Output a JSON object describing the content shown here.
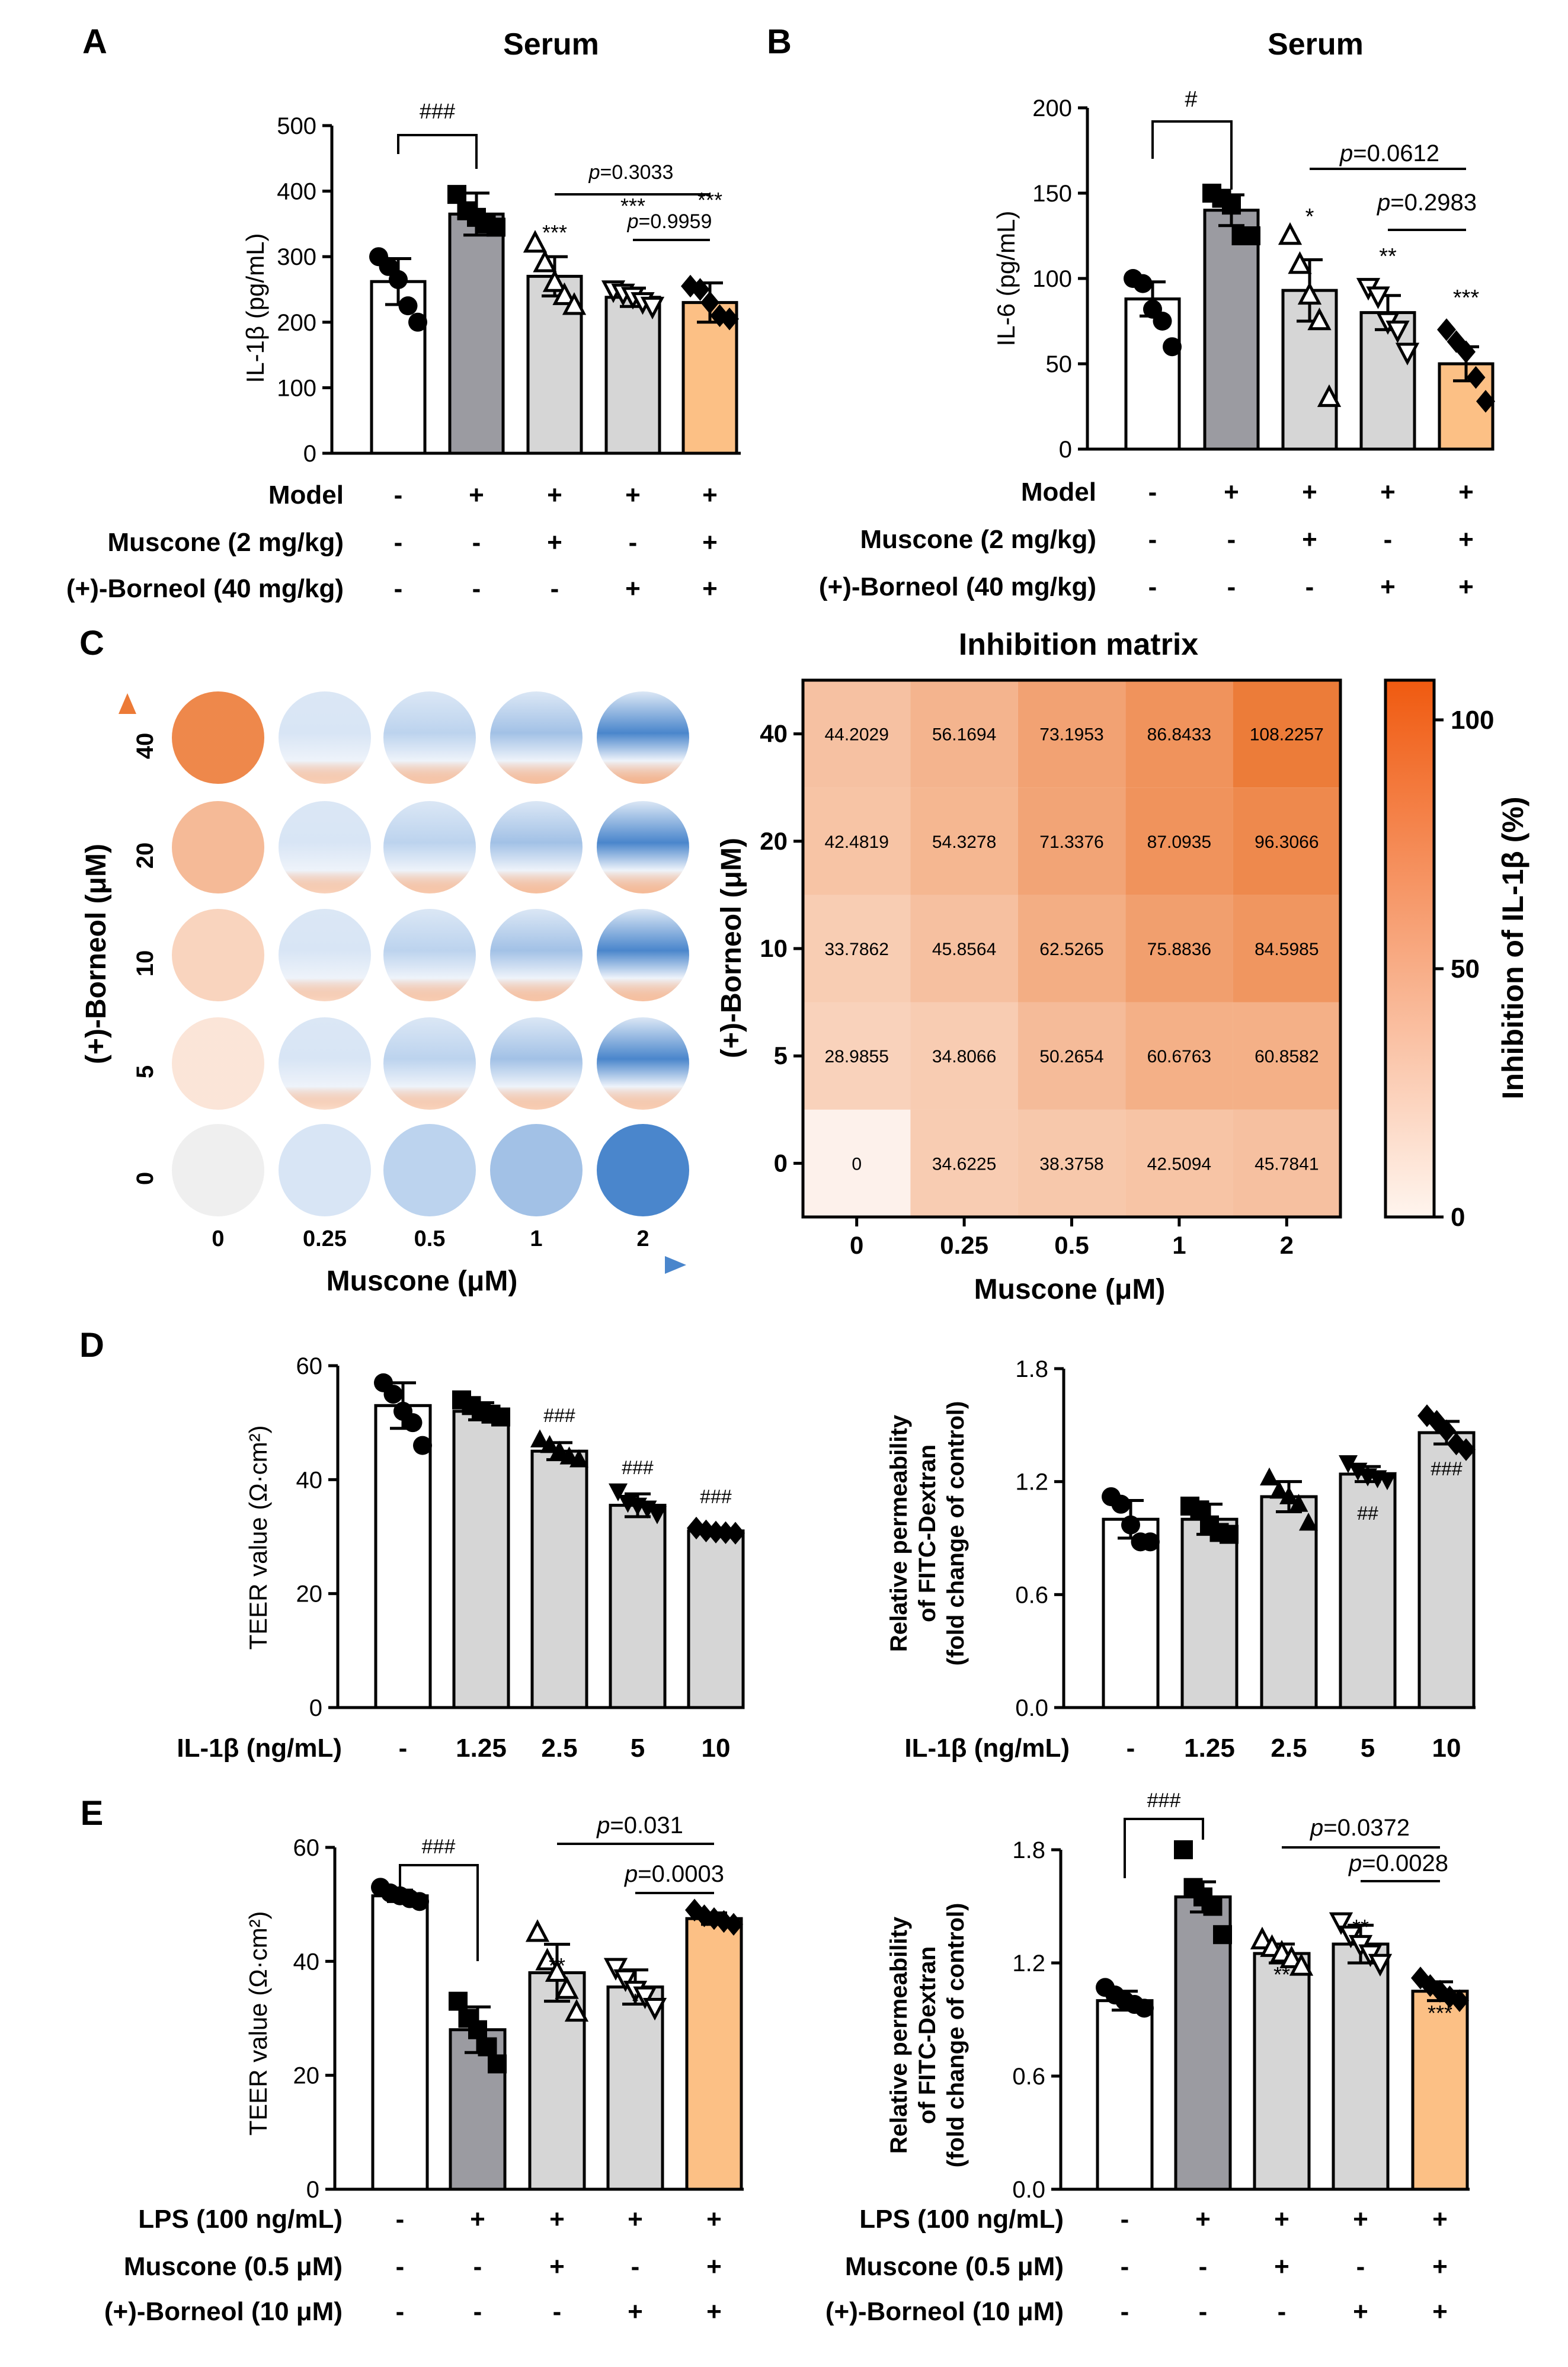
{
  "panels": {
    "A": {
      "letter": "A",
      "title": "Serum",
      "ylabel": "IL-1β (pg/mL)",
      "yticks": [
        "0",
        "100",
        "200",
        "300",
        "400",
        "500"
      ],
      "sig": [
        "###",
        "***",
        "***",
        "***"
      ],
      "p1": "p=0.3033",
      "p2": "p=0.9959"
    },
    "B": {
      "letter": "B",
      "title": "Serum",
      "ylabel": "IL-6 (pg/mL)",
      "yticks": [
        "0",
        "50",
        "100",
        "150",
        "200"
      ],
      "sig": [
        "#",
        "*",
        "**",
        "***"
      ],
      "p1": "p=0.0612",
      "p2": "p=0.2983"
    },
    "C": {
      "letter": "C",
      "title": "Inhibition matrix",
      "ylabel": "(+)-Borneol (μM)",
      "xlabel": "Muscone (μM)",
      "x_ticks": [
        "0",
        "0.25",
        "0.5",
        "1",
        "2"
      ],
      "y_ticks": [
        "40",
        "20",
        "10",
        "5",
        "0"
      ],
      "colorbar_label": "Inhibition of IL-1β (%)",
      "colorbar_ticks": [
        "100",
        "50",
        "0"
      ]
    },
    "D": {
      "letter": "D",
      "ylabel1": "TEER value (Ω·cm²)",
      "ylabel2a": "Relative permeability",
      "ylabel2b": "of FITC-Dextran",
      "ylabel2c": "(fold change of control)",
      "yticks1": [
        "0",
        "20",
        "40",
        "60"
      ],
      "yticks2": [
        "0.0",
        "0.6",
        "1.2",
        "1.8"
      ],
      "xrow_label": "IL-1β (ng/mL)",
      "xvals": [
        "-",
        "1.25",
        "2.5",
        "5",
        "10"
      ],
      "sig1": [
        "###",
        "###",
        "###"
      ],
      "sig2": [
        "##",
        "###"
      ]
    },
    "E": {
      "letter": "E",
      "ylabel1": "TEER value (Ω·cm²)",
      "yticks1": [
        "0",
        "20",
        "40",
        "60"
      ],
      "yticks2": [
        "0.0",
        "0.6",
        "1.2",
        "1.8"
      ],
      "sig1": [
        "###",
        "**",
        "*",
        "***"
      ],
      "sig2": [
        "###",
        "**",
        "**",
        "***"
      ],
      "p1a": "p=0.031",
      "p1b": "p=0.0003",
      "p2a": "p=0.0372",
      "p2b": "p=0.0028"
    }
  },
  "treat_rows_AB": [
    {
      "label": "Model",
      "vals": [
        "-",
        "+",
        "+",
        "+",
        "+"
      ]
    },
    {
      "label": "Muscone (2 mg/kg)",
      "vals": [
        "-",
        "-",
        "+",
        "-",
        "+"
      ]
    },
    {
      "label": "(+)-Borneol (40 mg/kg)",
      "vals": [
        "-",
        "-",
        "-",
        "+",
        "+"
      ]
    }
  ],
  "treat_rows_E": [
    {
      "label": "LPS (100 ng/mL)",
      "vals": [
        "-",
        "+",
        "+",
        "+",
        "+"
      ]
    },
    {
      "label": "Muscone (0.5 μM)",
      "vals": [
        "-",
        "-",
        "+",
        "-",
        "+"
      ]
    },
    {
      "label": "(+)-Borneol (10 μM)",
      "vals": [
        "-",
        "-",
        "-",
        "+",
        "+"
      ]
    }
  ],
  "chart_data": [
    {
      "id": "A",
      "type": "bar",
      "title": "Serum",
      "ylabel": "IL-1β (pg/mL)",
      "ylim": [
        0,
        500
      ],
      "values": [
        262,
        365,
        270,
        238,
        230
      ],
      "err": [
        35,
        32,
        30,
        14,
        30
      ],
      "points": [
        [
          300,
          285,
          265,
          225,
          200
        ],
        [
          395,
          370,
          360,
          350,
          345
        ],
        [
          320,
          290,
          260,
          240,
          225
        ],
        [
          250,
          245,
          240,
          232,
          225
        ],
        [
          255,
          250,
          230,
          210,
          205
        ]
      ]
    },
    {
      "id": "B",
      "type": "bar",
      "title": "Serum",
      "ylabel": "IL-6 (pg/mL)",
      "ylim": [
        0,
        200
      ],
      "values": [
        88,
        140,
        93,
        80,
        50
      ],
      "err": [
        10,
        9,
        18,
        10,
        10
      ],
      "points": [
        [
          100,
          97,
          82,
          75,
          60
        ],
        [
          150,
          147,
          143,
          125,
          125
        ],
        [
          125,
          108,
          90,
          75,
          30
        ],
        [
          95,
          90,
          75,
          70,
          57
        ],
        [
          70,
          63,
          57,
          42,
          28
        ]
      ]
    },
    {
      "id": "C-heatmap",
      "type": "heatmap",
      "title": "Inhibition matrix",
      "x": [
        "0",
        "0.25",
        "0.5",
        "1",
        "2"
      ],
      "y": [
        "40",
        "20",
        "10",
        "5",
        "0"
      ],
      "values": [
        [
          "44.2029",
          "56.1694",
          "73.1953",
          "86.8433",
          "108.2257"
        ],
        [
          "42.4819",
          "54.3278",
          "71.3376",
          "87.0935",
          "96.3066"
        ],
        [
          "33.7862",
          "45.8564",
          "62.5265",
          "75.8836",
          "84.5985"
        ],
        [
          "28.9855",
          "34.8066",
          "50.2654",
          "60.6763",
          "60.8582"
        ],
        [
          "0",
          "34.6225",
          "38.3758",
          "42.5094",
          "45.7841"
        ]
      ],
      "zlim": [
        0,
        110
      ]
    },
    {
      "id": "D-TEER",
      "type": "bar",
      "ylabel": "TEER value (Ω·cm²)",
      "ylim": [
        0,
        60
      ],
      "values": [
        53,
        52,
        45,
        35.5,
        31
      ],
      "err": [
        4,
        1.5,
        1.5,
        2,
        0.5
      ],
      "points": [
        [
          57,
          55,
          52,
          50,
          46
        ],
        [
          54,
          53,
          52,
          51.5,
          51
        ],
        [
          47,
          46,
          45,
          44,
          43.5
        ],
        [
          38,
          36,
          35.5,
          35,
          34
        ],
        [
          31.5,
          31,
          30.8,
          30.7,
          30.6
        ]
      ]
    },
    {
      "id": "D-perm",
      "type": "bar",
      "ylabel": "Relative permeability of FITC-Dextran (fold change of control)",
      "ylim": [
        0,
        1.8
      ],
      "values": [
        1.0,
        1.0,
        1.12,
        1.24,
        1.46
      ],
      "err": [
        0.1,
        0.08,
        0.08,
        0.04,
        0.06
      ],
      "points": [
        [
          1.12,
          1.08,
          0.97,
          0.88,
          0.88
        ],
        [
          1.07,
          1.05,
          0.97,
          0.93,
          0.92
        ],
        [
          1.22,
          1.15,
          1.12,
          1.08,
          0.98
        ],
        [
          1.3,
          1.26,
          1.23,
          1.22,
          1.21
        ],
        [
          1.55,
          1.52,
          1.47,
          1.4,
          1.37
        ]
      ]
    },
    {
      "id": "E-TEER",
      "type": "bar",
      "ylabel": "TEER value (Ω·cm²)",
      "ylim": [
        0,
        60
      ],
      "values": [
        51.5,
        28,
        38,
        35.5,
        47.5
      ],
      "err": [
        1,
        4,
        5,
        3,
        1
      ],
      "points": [
        [
          53,
          52,
          51.5,
          51,
          50.5
        ],
        [
          33,
          30,
          28,
          25,
          22
        ],
        [
          45,
          40,
          38,
          35,
          31
        ],
        [
          39,
          37,
          35,
          34,
          32
        ],
        [
          49,
          48,
          47.5,
          47,
          46.5
        ]
      ]
    },
    {
      "id": "E-perm",
      "type": "bar",
      "ylabel": "Relative permeability of FITC-Dextran (fold change of control)",
      "ylim": [
        0,
        1.8
      ],
      "values": [
        1.0,
        1.55,
        1.25,
        1.3,
        1.05
      ],
      "err": [
        0.05,
        0.08,
        0.05,
        0.1,
        0.05
      ],
      "points": [
        [
          1.07,
          1.03,
          1.0,
          0.98,
          0.96
        ],
        [
          1.8,
          1.6,
          1.55,
          1.5,
          1.35
        ],
        [
          1.32,
          1.28,
          1.25,
          1.22,
          1.18
        ],
        [
          1.42,
          1.35,
          1.3,
          1.25,
          1.2
        ],
        [
          1.12,
          1.08,
          1.05,
          1.02,
          1.0
        ]
      ]
    }
  ],
  "colors": {
    "white": "#ffffff",
    "model": "#9b9ba1",
    "treat": "#d6d6d6",
    "combo": "#fcc085",
    "orange": "#ec7a36",
    "blue": "#4a86cc"
  }
}
